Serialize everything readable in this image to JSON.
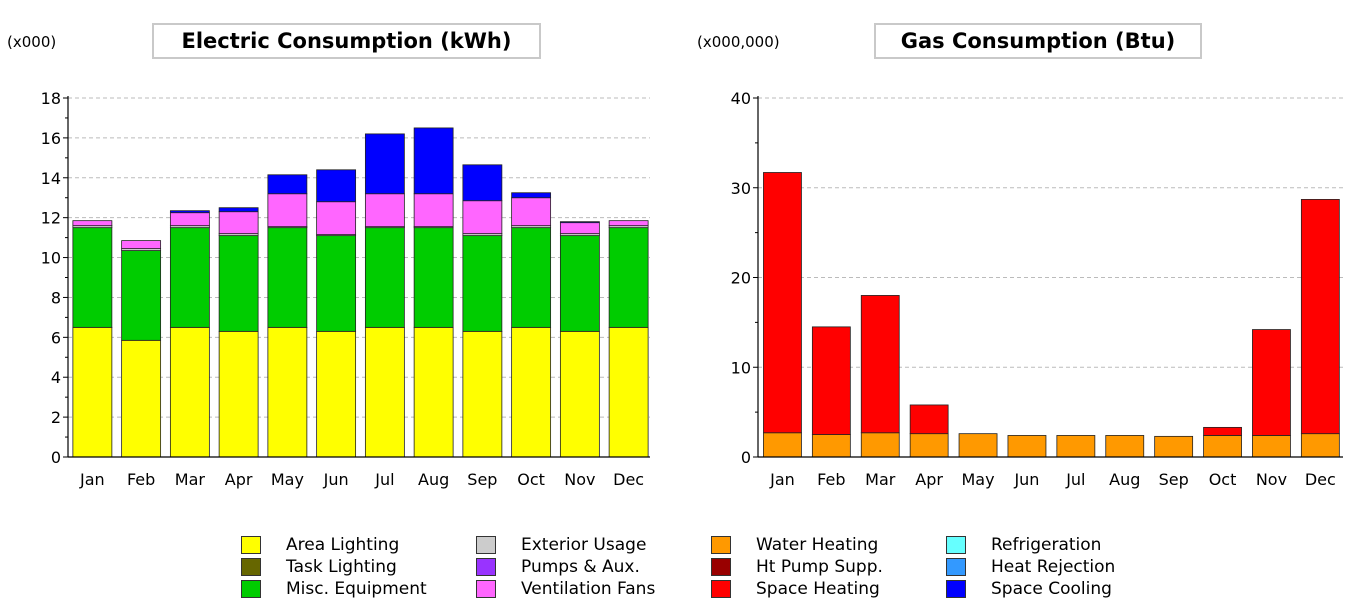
{
  "legend": [
    {
      "label": "Area Lighting",
      "color": "#ffff00"
    },
    {
      "label": "Task Lighting",
      "color": "#666600"
    },
    {
      "label": "Misc. Equipment",
      "color": "#00cc00"
    },
    {
      "label": "Exterior Usage",
      "color": "#cccccc"
    },
    {
      "label": "Pumps & Aux.",
      "color": "#9933ff"
    },
    {
      "label": "Ventilation Fans",
      "color": "#ff66ff"
    },
    {
      "label": "Water Heating",
      "color": "#ff9900"
    },
    {
      "label": "Ht Pump Supp.",
      "color": "#990000"
    },
    {
      "label": "Space Heating",
      "color": "#ff0000"
    },
    {
      "label": "Refrigeration",
      "color": "#66ffff"
    },
    {
      "label": "Heat Rejection",
      "color": "#3399ff"
    },
    {
      "label": "Space Cooling",
      "color": "#0000ff"
    }
  ],
  "chart_data": [
    {
      "type": "bar",
      "stacked": true,
      "title": "Electric Consumption (kWh)",
      "multiplier": "(x000)",
      "categories": [
        "Jan",
        "Feb",
        "Mar",
        "Apr",
        "May",
        "Jun",
        "Jul",
        "Aug",
        "Sep",
        "Oct",
        "Nov",
        "Dec"
      ],
      "ylim": [
        0,
        18
      ],
      "yticks": [
        0,
        2,
        4,
        6,
        8,
        10,
        12,
        14,
        16,
        18
      ],
      "grid": true,
      "series": [
        {
          "name": "Area Lighting",
          "color": "#ffff00",
          "values": [
            6.5,
            5.85,
            6.5,
            6.3,
            6.5,
            6.3,
            6.5,
            6.5,
            6.3,
            6.5,
            6.3,
            6.5
          ]
        },
        {
          "name": "Misc. Equipment",
          "color": "#00cc00",
          "values": [
            5.0,
            4.5,
            5.0,
            4.8,
            5.0,
            4.8,
            5.0,
            5.0,
            4.8,
            5.0,
            4.8,
            5.0
          ]
        },
        {
          "name": "Exterior Usage",
          "color": "#cccccc",
          "values": [
            0.1,
            0.1,
            0.1,
            0.1,
            0.05,
            0.05,
            0.05,
            0.05,
            0.1,
            0.1,
            0.1,
            0.1
          ]
        },
        {
          "name": "Ventilation Fans",
          "color": "#ff66ff",
          "values": [
            0.25,
            0.4,
            0.65,
            1.1,
            1.65,
            1.65,
            1.65,
            1.65,
            1.65,
            1.4,
            0.55,
            0.25
          ]
        },
        {
          "name": "Space Cooling",
          "color": "#0000ff",
          "values": [
            0.0,
            0.0,
            0.1,
            0.2,
            0.95,
            1.6,
            3.0,
            3.3,
            1.8,
            0.25,
            0.05,
            0.0
          ]
        }
      ]
    },
    {
      "type": "bar",
      "stacked": true,
      "title": "Gas Consumption (Btu)",
      "multiplier": "(x000,000)",
      "categories": [
        "Jan",
        "Feb",
        "Mar",
        "Apr",
        "May",
        "Jun",
        "Jul",
        "Aug",
        "Sep",
        "Oct",
        "Nov",
        "Dec"
      ],
      "ylim": [
        0,
        40
      ],
      "yticks": [
        0,
        10,
        20,
        30,
        40
      ],
      "grid": true,
      "series": [
        {
          "name": "Water Heating",
          "color": "#ff9900",
          "values": [
            2.7,
            2.5,
            2.7,
            2.6,
            2.6,
            2.4,
            2.4,
            2.4,
            2.3,
            2.4,
            2.4,
            2.6
          ]
        },
        {
          "name": "Space Heating",
          "color": "#ff0000",
          "values": [
            29.0,
            12.0,
            15.3,
            3.2,
            0.0,
            0.0,
            0.0,
            0.0,
            0.0,
            0.9,
            11.8,
            26.1
          ]
        }
      ]
    }
  ]
}
